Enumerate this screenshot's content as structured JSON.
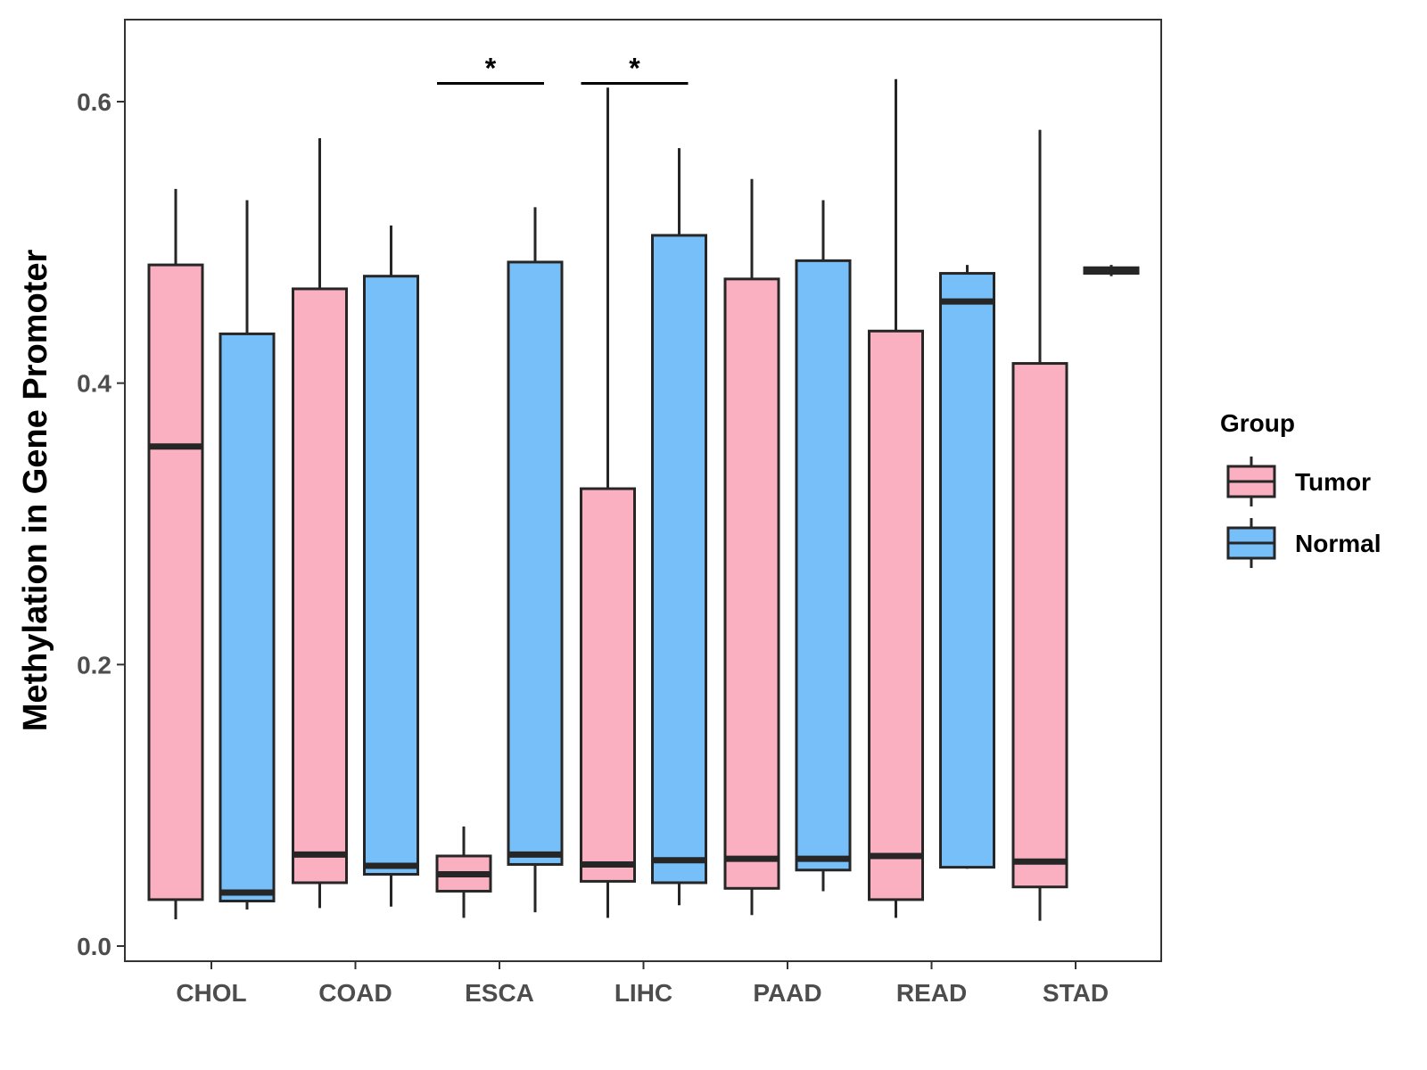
{
  "chart_data": {
    "type": "boxplot",
    "title": "",
    "xlabel": "",
    "ylabel": "Methylation in Gene Promoter",
    "ylim": [
      -0.02,
      0.66
    ],
    "yticks": [
      0.0,
      0.2,
      0.4,
      0.6
    ],
    "ytick_labels": [
      "0.0",
      "0.2",
      "0.4",
      "0.6"
    ],
    "grid": false,
    "legend": {
      "title": "Group",
      "position": "right",
      "entries": [
        {
          "name": "Tumor",
          "color": "#FBB0C2"
        },
        {
          "name": "Normal",
          "color": "#76BFF8"
        }
      ]
    },
    "categories": [
      "CHOL",
      "COAD",
      "ESCA",
      "LIHC",
      "PAAD",
      "READ",
      "STAD"
    ],
    "series": [
      {
        "name": "Tumor",
        "color": "#FBB0C2",
        "boxes": [
          {
            "min": 0.019,
            "q1": 0.033,
            "median": 0.355,
            "q3": 0.484,
            "max": 0.538
          },
          {
            "min": 0.027,
            "q1": 0.045,
            "median": 0.065,
            "q3": 0.467,
            "max": 0.574
          },
          {
            "min": 0.02,
            "q1": 0.039,
            "median": 0.051,
            "q3": 0.064,
            "max": 0.085
          },
          {
            "min": 0.02,
            "q1": 0.046,
            "median": 0.058,
            "q3": 0.325,
            "max": 0.61
          },
          {
            "min": 0.022,
            "q1": 0.041,
            "median": 0.062,
            "q3": 0.474,
            "max": 0.545
          },
          {
            "min": 0.02,
            "q1": 0.033,
            "median": 0.064,
            "q3": 0.437,
            "max": 0.616
          },
          {
            "min": 0.018,
            "q1": 0.042,
            "median": 0.06,
            "q3": 0.414,
            "max": 0.58
          }
        ]
      },
      {
        "name": "Normal",
        "color": "#76BFF8",
        "boxes": [
          {
            "min": 0.026,
            "q1": 0.032,
            "median": 0.038,
            "q3": 0.435,
            "max": 0.53
          },
          {
            "min": 0.028,
            "q1": 0.051,
            "median": 0.057,
            "q3": 0.476,
            "max": 0.512
          },
          {
            "min": 0.024,
            "q1": 0.058,
            "median": 0.065,
            "q3": 0.486,
            "max": 0.525
          },
          {
            "min": 0.029,
            "q1": 0.045,
            "median": 0.061,
            "q3": 0.505,
            "max": 0.567
          },
          {
            "min": 0.039,
            "q1": 0.054,
            "median": 0.062,
            "q3": 0.487,
            "max": 0.53
          },
          {
            "min": 0.055,
            "q1": 0.056,
            "median": 0.458,
            "q3": 0.478,
            "max": 0.484
          },
          {
            "min": 0.476,
            "q1": 0.478,
            "median": 0.48,
            "q3": 0.482,
            "max": 0.484
          }
        ]
      }
    ],
    "annotations": [
      {
        "category": "ESCA",
        "label": "*",
        "y": 0.613
      },
      {
        "category": "LIHC",
        "label": "*",
        "y": 0.613
      }
    ]
  }
}
